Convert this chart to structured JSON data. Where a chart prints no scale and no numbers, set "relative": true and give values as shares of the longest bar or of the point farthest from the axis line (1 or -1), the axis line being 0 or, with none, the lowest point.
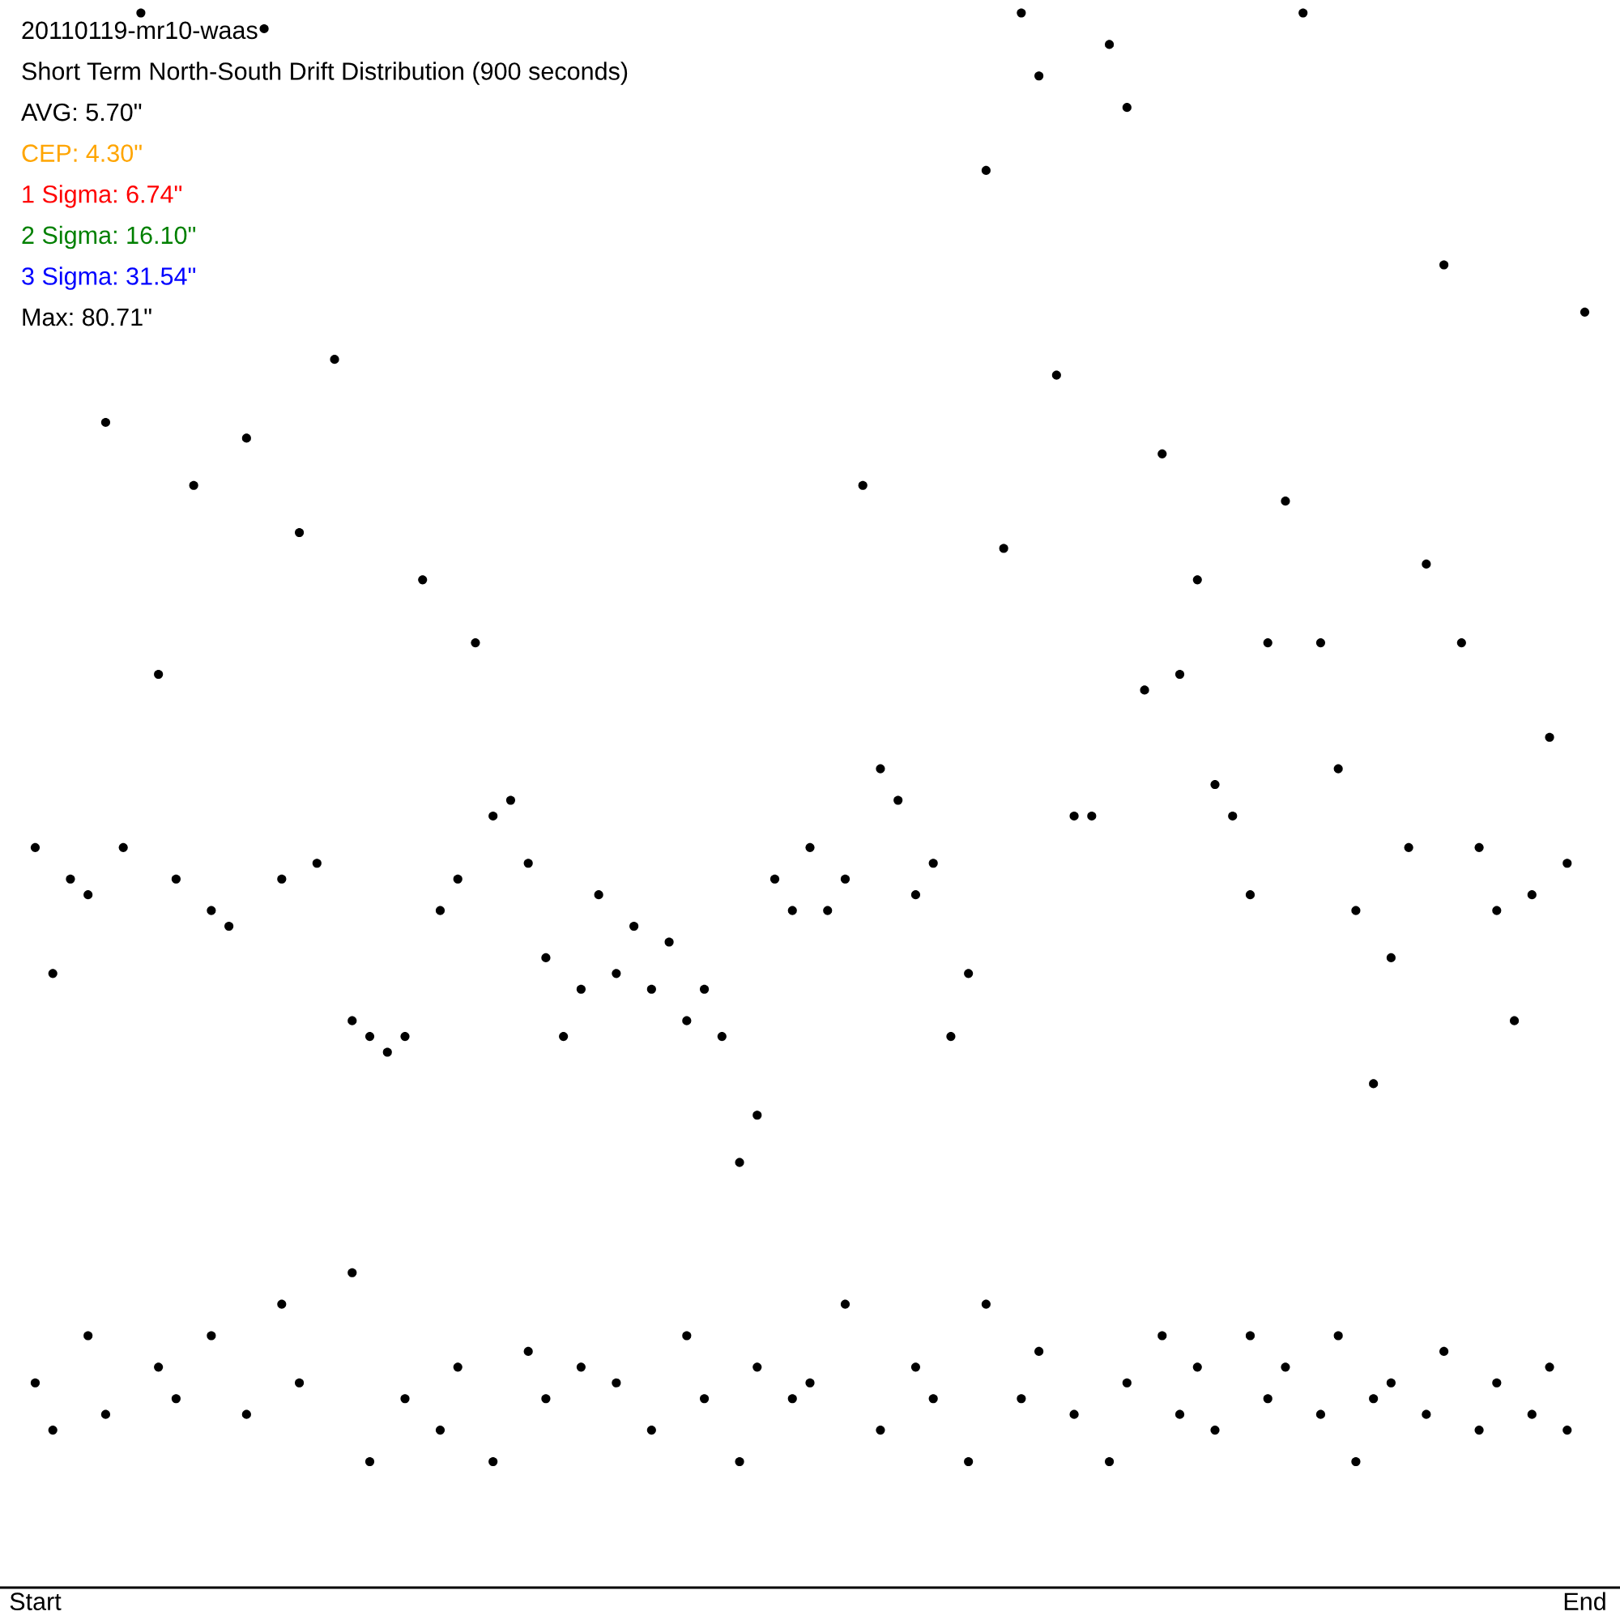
{
  "chart_data": {
    "type": "scatter",
    "title": "20110119-mr10-waas",
    "subtitle": "Short Term North-South Drift Distribution (900 seconds)",
    "annotations": [
      "AVG: 5.70\"",
      "CEP: 4.30\"",
      "1 Sigma: 6.74\"",
      "2 Sigma: 16.10\"",
      "3 Sigma: 31.54\"",
      "Max: 80.71\""
    ],
    "relative": true,
    "marker": "circle",
    "categories": [
      "Start",
      null,
      null,
      null,
      null,
      null,
      null,
      null,
      null,
      null,
      null,
      null,
      null,
      null,
      null,
      null,
      null,
      null,
      null,
      null,
      null,
      null,
      null,
      null,
      null,
      null,
      null,
      null,
      null,
      null,
      null,
      null,
      null,
      null,
      null,
      null,
      null,
      null,
      null,
      null,
      null,
      null,
      null,
      null,
      null,
      null,
      null,
      null,
      null,
      null,
      null,
      null,
      null,
      null,
      null,
      null,
      null,
      null,
      null,
      null,
      null,
      null,
      null,
      null,
      null,
      null,
      null,
      null,
      null,
      null,
      null,
      null,
      null,
      null,
      null,
      null,
      null,
      null,
      null,
      null,
      null,
      null,
      null,
      null,
      null,
      null,
      null,
      null,
      "End"
    ],
    "series": [
      {
        "color": "#000000",
        "values": [
          0.47,
          0.39,
          0.45,
          0.44,
          0.74,
          0.47,
          1.0,
          0.58,
          0.45,
          0.7,
          0.43,
          0.42,
          0.73,
          0.99,
          0.45,
          0.67,
          0.46,
          0.78,
          0.36,
          0.35,
          0.34,
          0.35,
          0.64,
          0.43,
          0.45,
          0.6,
          0.49,
          0.5,
          0.46,
          0.4,
          0.35,
          0.38,
          0.44,
          0.39,
          0.42,
          0.38,
          0.41,
          0.36,
          0.38,
          0.35,
          0.27,
          0.3,
          0.45,
          0.43,
          0.47,
          0.43,
          0.45,
          0.7,
          0.52,
          0.5,
          0.44,
          0.46,
          0.35,
          0.39,
          0.9,
          0.66,
          1.0,
          0.96,
          0.77,
          0.49,
          0.49,
          0.98,
          0.94,
          0.57,
          0.72,
          0.58,
          0.64,
          0.51,
          0.49,
          0.44,
          0.6,
          0.69,
          1.0,
          0.6,
          0.52,
          0.43,
          0.32,
          0.4,
          0.47,
          0.65,
          0.84,
          0.6,
          0.47,
          0.43,
          0.36,
          0.44,
          0.54,
          0.46,
          0.81
        ]
      },
      {
        "color": "#000000",
        "values": [
          0.13,
          0.1,
          null,
          0.16,
          0.11,
          null,
          null,
          0.14,
          0.12,
          null,
          0.16,
          null,
          0.11,
          null,
          0.18,
          0.13,
          null,
          null,
          0.2,
          0.08,
          null,
          0.12,
          null,
          0.1,
          0.14,
          null,
          0.08,
          null,
          0.15,
          0.12,
          null,
          0.14,
          null,
          0.13,
          null,
          0.1,
          null,
          0.16,
          0.12,
          null,
          0.08,
          0.14,
          null,
          0.12,
          0.13,
          null,
          0.18,
          null,
          0.1,
          null,
          0.14,
          0.12,
          null,
          0.08,
          0.18,
          null,
          0.12,
          0.15,
          null,
          0.11,
          null,
          0.08,
          0.13,
          null,
          0.16,
          0.11,
          0.14,
          0.1,
          null,
          0.16,
          0.12,
          0.14,
          null,
          0.11,
          0.16,
          0.08,
          0.12,
          0.13,
          null,
          0.11,
          0.15,
          null,
          0.1,
          0.13,
          null,
          0.11,
          0.14,
          0.1,
          null
        ]
      }
    ]
  }
}
